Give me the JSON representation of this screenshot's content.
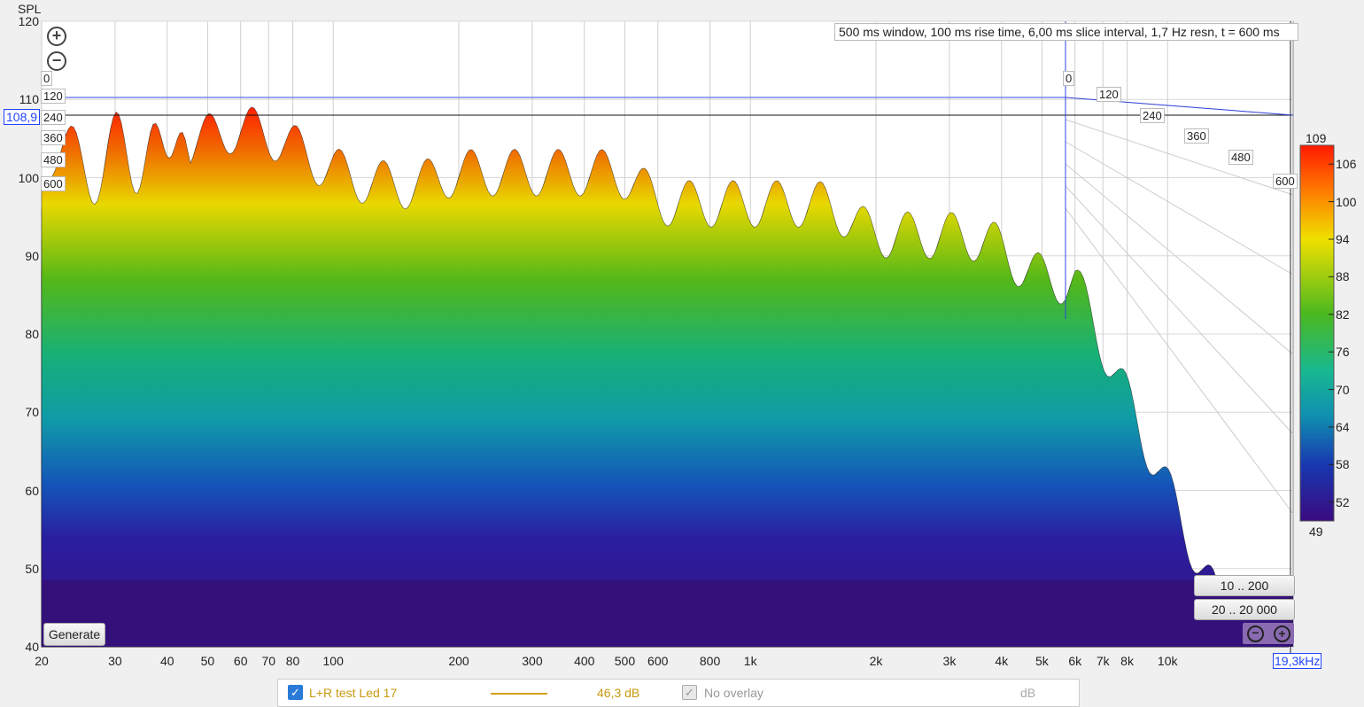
{
  "chart_data": {
    "type": "waterfall",
    "y_axis": {
      "label": "SPL",
      "range": [
        40,
        120
      ],
      "ticks": [
        "120",
        "110",
        "100",
        "90",
        "80",
        "70",
        "60",
        "50",
        "40"
      ]
    },
    "x_axis": {
      "scale": "log",
      "range_hz": [
        20,
        20000
      ],
      "ticks": [
        "20",
        "30",
        "40",
        "50",
        "60",
        "70",
        "80",
        "100",
        "200",
        "300",
        "400",
        "500",
        "600",
        "800",
        "1k",
        "2k",
        "3k",
        "4k",
        "5k",
        "6k",
        "7k",
        "8k",
        "10k"
      ]
    },
    "time_axis_ms": [
      "0",
      "120",
      "240",
      "360",
      "480",
      "600"
    ],
    "cursor": {
      "y_value": "108,9",
      "x_value": "19,3kHz"
    },
    "info": "500 ms window, 100 ms rise time, 6,00 ms slice interval, 1,7 Hz resn, t = 600 ms",
    "colorbar": {
      "max": "109",
      "min": "49",
      "ticks": [
        "106",
        "100",
        "94",
        "88",
        "82",
        "76",
        "70",
        "64",
        "58",
        "52"
      ]
    },
    "peaks": [
      {
        "hz": 30,
        "spl": 103
      },
      {
        "hz": 40,
        "spl": 106
      },
      {
        "hz": 72,
        "spl": 108.9
      },
      {
        "hz": 100,
        "spl": 100
      },
      {
        "hz": 300,
        "spl": 102
      },
      {
        "hz": 1000,
        "spl": 98
      },
      {
        "hz": 3000,
        "spl": 94
      },
      {
        "hz": 6000,
        "spl": 88
      }
    ]
  },
  "ui": {
    "generate": "Generate",
    "range_low": "10 .. 200",
    "range_full": "20 .. 20 000"
  },
  "legend": {
    "trace": "L+R test Led 17",
    "trace_color": "#d4a016",
    "trace_value": "46,3 dB",
    "overlay": "No overlay",
    "unit": "dB"
  }
}
